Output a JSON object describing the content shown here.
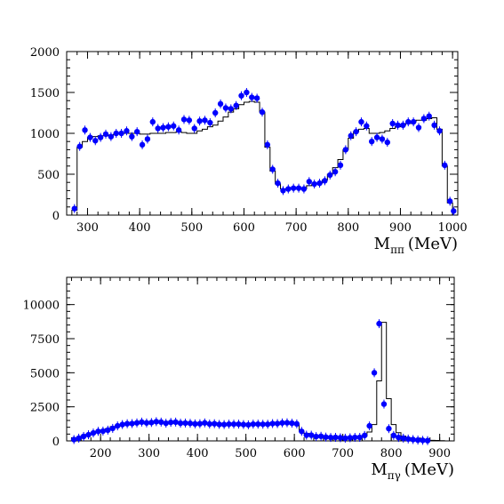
{
  "chart_data": [
    {
      "type": "histogram-with-points",
      "title": "",
      "xlabel": "M",
      "xlabel_sub": "ππ",
      "xlabel_unit": "(MeV)",
      "ylabel": "",
      "xlim": [
        260,
        1010
      ],
      "ylim": [
        0,
        2000
      ],
      "xticks": [
        300,
        400,
        500,
        600,
        700,
        800,
        900,
        1000
      ],
      "yticks": [
        0,
        500,
        1000,
        1500,
        2000
      ],
      "tick_labels_x": [
        "300",
        "400",
        "500",
        "600",
        "700",
        "800",
        "900",
        "1000"
      ],
      "tick_labels_y": [
        "0",
        "500",
        "1000",
        "1500",
        "2000"
      ],
      "histogram": {
        "bin_edges": [
          270,
          280,
          290,
          300,
          310,
          320,
          330,
          340,
          350,
          360,
          370,
          380,
          390,
          400,
          410,
          420,
          430,
          440,
          450,
          460,
          470,
          480,
          490,
          500,
          510,
          520,
          530,
          540,
          550,
          560,
          570,
          580,
          590,
          600,
          610,
          620,
          630,
          640,
          650,
          660,
          670,
          680,
          690,
          700,
          710,
          720,
          730,
          740,
          750,
          760,
          770,
          780,
          790,
          800,
          810,
          820,
          830,
          840,
          850,
          860,
          870,
          880,
          890,
          900,
          910,
          920,
          930,
          940,
          950,
          960,
          970,
          980,
          990,
          1000
        ],
        "values": [
          60,
          830,
          900,
          950,
          960,
          970,
          970,
          980,
          990,
          1000,
          1000,
          1000,
          1000,
          990,
          990,
          1000,
          1000,
          1000,
          1010,
          1010,
          1020,
          1010,
          1000,
          1000,
          1030,
          1050,
          1080,
          1100,
          1150,
          1200,
          1260,
          1300,
          1350,
          1380,
          1390,
          1380,
          1260,
          830,
          540,
          380,
          320,
          320,
          320,
          320,
          320,
          360,
          380,
          390,
          430,
          500,
          580,
          680,
          800,
          940,
          1020,
          1050,
          1060,
          1000,
          1000,
          1010,
          1030,
          1060,
          1080,
          1100,
          1120,
          1140,
          1160,
          1160,
          1180,
          1190,
          1050,
          600,
          150
        ]
      },
      "points": {
        "x": [
          275,
          285,
          295,
          305,
          315,
          325,
          335,
          345,
          355,
          365,
          375,
          385,
          395,
          405,
          415,
          425,
          435,
          445,
          455,
          465,
          475,
          485,
          495,
          505,
          515,
          525,
          535,
          545,
          555,
          565,
          575,
          585,
          595,
          605,
          615,
          625,
          635,
          645,
          655,
          665,
          675,
          685,
          695,
          705,
          715,
          725,
          735,
          745,
          755,
          765,
          775,
          785,
          795,
          805,
          815,
          825,
          835,
          845,
          855,
          865,
          875,
          885,
          895,
          905,
          915,
          925,
          935,
          945,
          955,
          965,
          975,
          985,
          995,
          1002
        ],
        "y": [
          80,
          840,
          1040,
          950,
          910,
          950,
          990,
          960,
          1000,
          1000,
          1030,
          960,
          1020,
          860,
          930,
          1140,
          1060,
          1070,
          1080,
          1090,
          1040,
          1170,
          1160,
          1060,
          1150,
          1160,
          1130,
          1250,
          1360,
          1310,
          1300,
          1340,
          1460,
          1500,
          1440,
          1430,
          1260,
          860,
          560,
          390,
          300,
          320,
          330,
          330,
          320,
          410,
          380,
          390,
          420,
          490,
          530,
          610,
          800,
          970,
          1020,
          1140,
          1090,
          900,
          950,
          930,
          890,
          1120,
          1100,
          1100,
          1140,
          1140,
          1070,
          1180,
          1210,
          1100,
          1030,
          610,
          170,
          50
        ]
      },
      "series_color": "#0000ff"
    },
    {
      "type": "histogram-with-points",
      "title": "",
      "xlabel": "M",
      "xlabel_sub": "πγ",
      "xlabel_unit": "(MeV)",
      "ylabel": "",
      "xlim": [
        130,
        930
      ],
      "ylim": [
        0,
        12000
      ],
      "xticks": [
        200,
        300,
        400,
        500,
        600,
        700,
        800,
        900
      ],
      "yticks": [
        0,
        2500,
        5000,
        7500,
        10000
      ],
      "tick_labels_x": [
        "200",
        "300",
        "400",
        "500",
        "600",
        "700",
        "800",
        "900"
      ],
      "tick_labels_y": [
        "0",
        "2500",
        "5000",
        "7500",
        "10000"
      ],
      "histogram": {
        "bin_edges": [
          140,
          150,
          160,
          170,
          180,
          190,
          200,
          210,
          220,
          230,
          240,
          250,
          260,
          270,
          280,
          290,
          300,
          310,
          320,
          330,
          340,
          350,
          360,
          370,
          380,
          390,
          400,
          410,
          420,
          430,
          440,
          450,
          460,
          470,
          480,
          490,
          500,
          510,
          520,
          530,
          540,
          550,
          560,
          570,
          580,
          590,
          600,
          610,
          620,
          630,
          640,
          650,
          660,
          670,
          680,
          690,
          700,
          710,
          720,
          730,
          740,
          750,
          760,
          770,
          780,
          790,
          800,
          810,
          820,
          830,
          840,
          850,
          860,
          870,
          880,
          890,
          900,
          910
        ],
        "values": [
          150,
          250,
          380,
          500,
          600,
          700,
          780,
          900,
          1050,
          1150,
          1200,
          1250,
          1280,
          1300,
          1310,
          1320,
          1330,
          1330,
          1320,
          1310,
          1300,
          1290,
          1280,
          1270,
          1260,
          1250,
          1240,
          1230,
          1220,
          1220,
          1210,
          1210,
          1200,
          1200,
          1200,
          1200,
          1200,
          1210,
          1210,
          1220,
          1230,
          1240,
          1250,
          1260,
          1270,
          1280,
          1200,
          700,
          550,
          420,
          330,
          300,
          280,
          260,
          250,
          240,
          240,
          240,
          260,
          280,
          350,
          650,
          1200,
          4400,
          8700,
          3100,
          1200,
          600,
          350,
          200,
          140,
          100,
          80,
          60,
          40,
          30,
          20
        ]
      },
      "points": {
        "x": [
          145,
          155,
          165,
          175,
          185,
          195,
          205,
          215,
          225,
          235,
          245,
          255,
          265,
          275,
          285,
          295,
          305,
          315,
          325,
          335,
          345,
          355,
          365,
          375,
          385,
          395,
          405,
          415,
          425,
          435,
          445,
          455,
          465,
          475,
          485,
          495,
          505,
          515,
          525,
          535,
          545,
          555,
          565,
          575,
          585,
          595,
          605,
          615,
          625,
          635,
          645,
          655,
          665,
          675,
          685,
          695,
          705,
          715,
          725,
          735,
          745,
          755,
          765,
          775,
          785,
          795,
          805,
          815,
          825,
          835,
          845,
          855,
          865,
          875
        ],
        "y": [
          100,
          200,
          330,
          450,
          580,
          700,
          720,
          790,
          920,
          1100,
          1200,
          1260,
          1270,
          1320,
          1380,
          1320,
          1350,
          1410,
          1380,
          1300,
          1360,
          1380,
          1300,
          1310,
          1290,
          1250,
          1260,
          1320,
          1240,
          1260,
          1210,
          1200,
          1230,
          1230,
          1230,
          1200,
          1180,
          1230,
          1230,
          1220,
          1220,
          1270,
          1270,
          1320,
          1330,
          1300,
          1250,
          700,
          420,
          420,
          320,
          340,
          280,
          250,
          260,
          230,
          200,
          230,
          260,
          260,
          400,
          1100,
          5000,
          8600,
          2700,
          900,
          400,
          250,
          200,
          140,
          100,
          60,
          40,
          20
        ]
      },
      "series_color": "#0000ff"
    }
  ]
}
